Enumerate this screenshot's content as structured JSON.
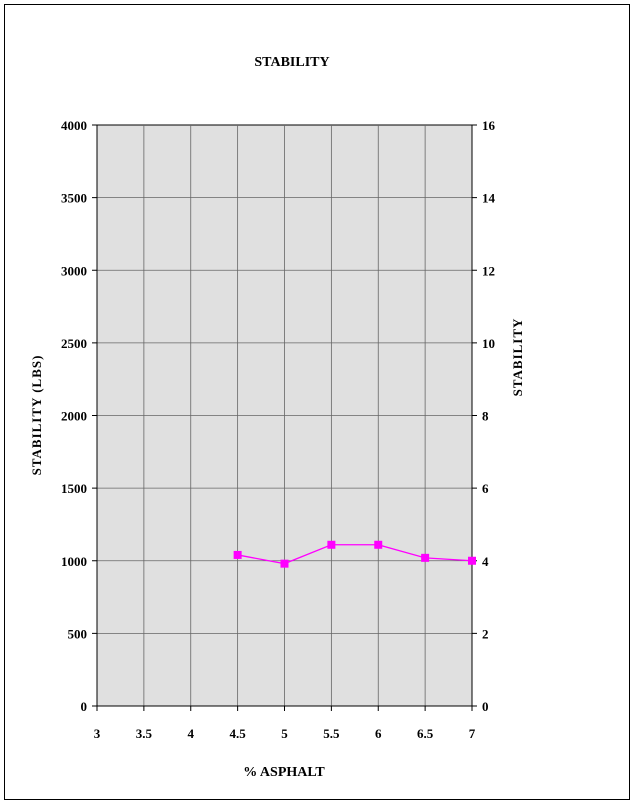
{
  "chart_data": {
    "type": "line",
    "title": "STABILITY",
    "xlabel": "% ASPHALT",
    "ylabel": "STABILITY  (LBS)",
    "y2label": "STABILITY",
    "xlim": [
      3,
      7
    ],
    "ylim": [
      0,
      4000
    ],
    "y2lim": [
      0,
      16
    ],
    "xticks": [
      "3",
      "3.5",
      "4",
      "4.5",
      "5",
      "5.5",
      "6",
      "6.5",
      "7"
    ],
    "yticks": [
      "0",
      "500",
      "1000",
      "1500",
      "2000",
      "2500",
      "3000",
      "3500",
      "4000"
    ],
    "y2ticks": [
      "0",
      "2",
      "4",
      "6",
      "8",
      "10",
      "12",
      "14",
      "16"
    ],
    "grid": true,
    "series": [
      {
        "color": "#ff00ff",
        "marker": "square",
        "x": [
          4.5,
          5,
          5.5,
          6,
          6.5,
          7
        ],
        "y": [
          1040,
          980,
          1110,
          1110,
          1020,
          1000
        ]
      }
    ]
  },
  "colors": {
    "plot_background": "#e0e0e0",
    "series": "#ff00ff"
  }
}
